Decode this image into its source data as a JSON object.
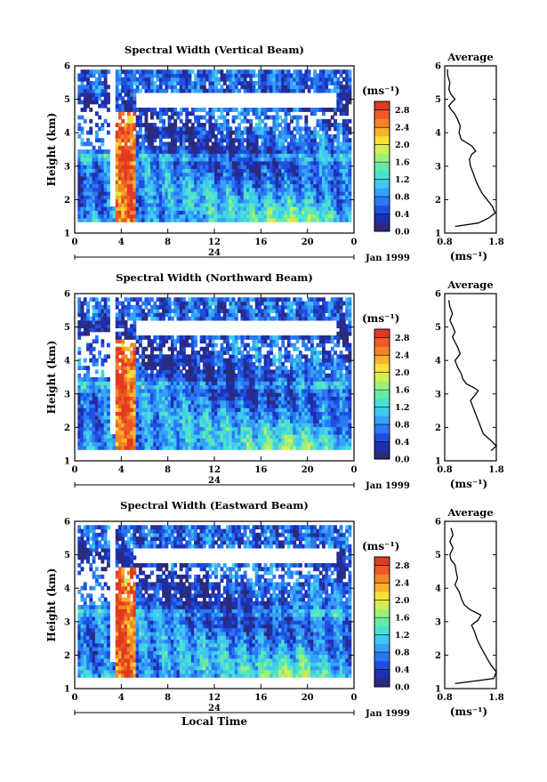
{
  "chart_data": [
    {
      "type": "heatmap",
      "title": "Spectral Width (Vertical Beam)",
      "ylabel": "Height (km)",
      "xlabel": "",
      "x_ticks": [
        "0",
        "4",
        "8",
        "12",
        "16",
        "20",
        "0"
      ],
      "y_ticks": [
        "1",
        "2",
        "3",
        "4",
        "5",
        "6"
      ],
      "date_ticks": [
        "24"
      ],
      "date_label": "Jan 1999",
      "xlim": [
        0,
        24
      ],
      "ylim": [
        1,
        6
      ],
      "colorbar": {
        "unit": "(ms⁻¹)",
        "ticks": [
          "0.0",
          "0.4",
          "0.8",
          "1.2",
          "1.6",
          "2.0",
          "2.4",
          "2.8"
        ],
        "range": [
          0,
          3.0
        ]
      },
      "profile": {
        "title": "Average",
        "xlabel": "(ms⁻¹)",
        "x_ticks": [
          "0.8",
          "1.8"
        ],
        "xlim": [
          0.8,
          1.8
        ],
        "y_ticks": [
          "1",
          "2",
          "3",
          "4",
          "5",
          "6"
        ],
        "height": [
          1.2,
          1.3,
          1.45,
          1.6,
          1.8,
          2.0,
          2.2,
          2.5,
          2.8,
          3.0,
          3.2,
          3.35,
          3.45,
          3.6,
          3.8,
          4.0,
          4.2,
          4.4,
          4.55,
          4.7,
          4.8,
          4.9,
          5.0,
          5.15,
          5.3,
          5.5,
          5.7,
          5.9
        ],
        "width": [
          1.0,
          1.45,
          1.65,
          1.78,
          1.72,
          1.62,
          1.52,
          1.42,
          1.35,
          1.3,
          1.28,
          1.32,
          1.4,
          1.33,
          1.12,
          1.08,
          1.1,
          1.05,
          1.0,
          0.92,
          0.88,
          0.93,
          1.0,
          0.92,
          0.88,
          0.9,
          0.86,
          0.85
        ]
      }
    },
    {
      "type": "heatmap",
      "title": "Spectral Width (Northward Beam)",
      "ylabel": "Height (km)",
      "xlabel": "",
      "x_ticks": [
        "0",
        "4",
        "8",
        "12",
        "16",
        "20",
        "0"
      ],
      "y_ticks": [
        "1",
        "2",
        "3",
        "4",
        "5",
        "6"
      ],
      "date_ticks": [
        "24"
      ],
      "date_label": "Jan 1999",
      "xlim": [
        0,
        24
      ],
      "ylim": [
        1,
        6
      ],
      "colorbar": {
        "unit": "(ms⁻¹)",
        "ticks": [
          "0.0",
          "0.4",
          "0.8",
          "1.2",
          "1.6",
          "2.0",
          "2.4",
          "2.8"
        ],
        "range": [
          0,
          3.0
        ]
      },
      "profile": {
        "title": "Average",
        "xlabel": "(ms⁻¹)",
        "x_ticks": [
          "0.8",
          "1.8"
        ],
        "xlim": [
          0.8,
          1.8
        ],
        "y_ticks": [
          "1",
          "2",
          "3",
          "4",
          "5",
          "6"
        ],
        "height": [
          1.3,
          1.45,
          1.6,
          1.8,
          2.0,
          2.2,
          2.4,
          2.6,
          2.8,
          2.95,
          3.1,
          3.2,
          3.3,
          3.45,
          3.6,
          3.8,
          4.0,
          4.2,
          4.4,
          4.55,
          4.7,
          4.85,
          5.0,
          5.2,
          5.4,
          5.6,
          5.8
        ],
        "width": [
          1.7,
          1.8,
          1.7,
          1.55,
          1.5,
          1.45,
          1.4,
          1.35,
          1.3,
          1.38,
          1.45,
          1.35,
          1.22,
          1.15,
          1.12,
          1.05,
          1.0,
          1.1,
          1.05,
          1.0,
          0.95,
          1.0,
          0.96,
          0.9,
          0.95,
          0.9,
          0.88
        ]
      }
    },
    {
      "type": "heatmap",
      "title": "Spectral Width (Eastward Beam)",
      "ylabel": "Height (km)",
      "xlabel": "Local Time",
      "x_ticks": [
        "0",
        "4",
        "8",
        "12",
        "16",
        "20",
        "0"
      ],
      "y_ticks": [
        "1",
        "2",
        "3",
        "4",
        "5",
        "6"
      ],
      "date_ticks": [
        "24"
      ],
      "date_label": "Jan 1999",
      "xlim": [
        0,
        24
      ],
      "ylim": [
        1,
        6
      ],
      "colorbar": {
        "unit": "(ms⁻¹)",
        "ticks": [
          "0.0",
          "0.4",
          "0.8",
          "1.2",
          "1.6",
          "2.0",
          "2.4",
          "2.8"
        ],
        "range": [
          0,
          3.0
        ]
      },
      "profile": {
        "title": "Average",
        "xlabel": "(ms⁻¹)",
        "x_ticks": [
          "0.8",
          "1.8"
        ],
        "xlim": [
          0.8,
          1.8
        ],
        "y_ticks": [
          "1",
          "2",
          "3",
          "4",
          "5",
          "6"
        ],
        "height": [
          1.15,
          1.3,
          1.5,
          1.7,
          1.9,
          2.1,
          2.3,
          2.5,
          2.7,
          2.9,
          3.05,
          3.2,
          3.35,
          3.5,
          3.7,
          3.9,
          4.1,
          4.3,
          4.5,
          4.7,
          4.85,
          5.0,
          5.2,
          5.4,
          5.6,
          5.8
        ],
        "width": [
          1.0,
          1.75,
          1.8,
          1.7,
          1.62,
          1.55,
          1.48,
          1.42,
          1.38,
          1.32,
          1.45,
          1.5,
          1.3,
          1.18,
          1.12,
          1.08,
          1.0,
          1.05,
          1.02,
          1.0,
          0.92,
          0.9,
          0.96,
          0.9,
          0.96,
          0.92
        ]
      }
    }
  ]
}
